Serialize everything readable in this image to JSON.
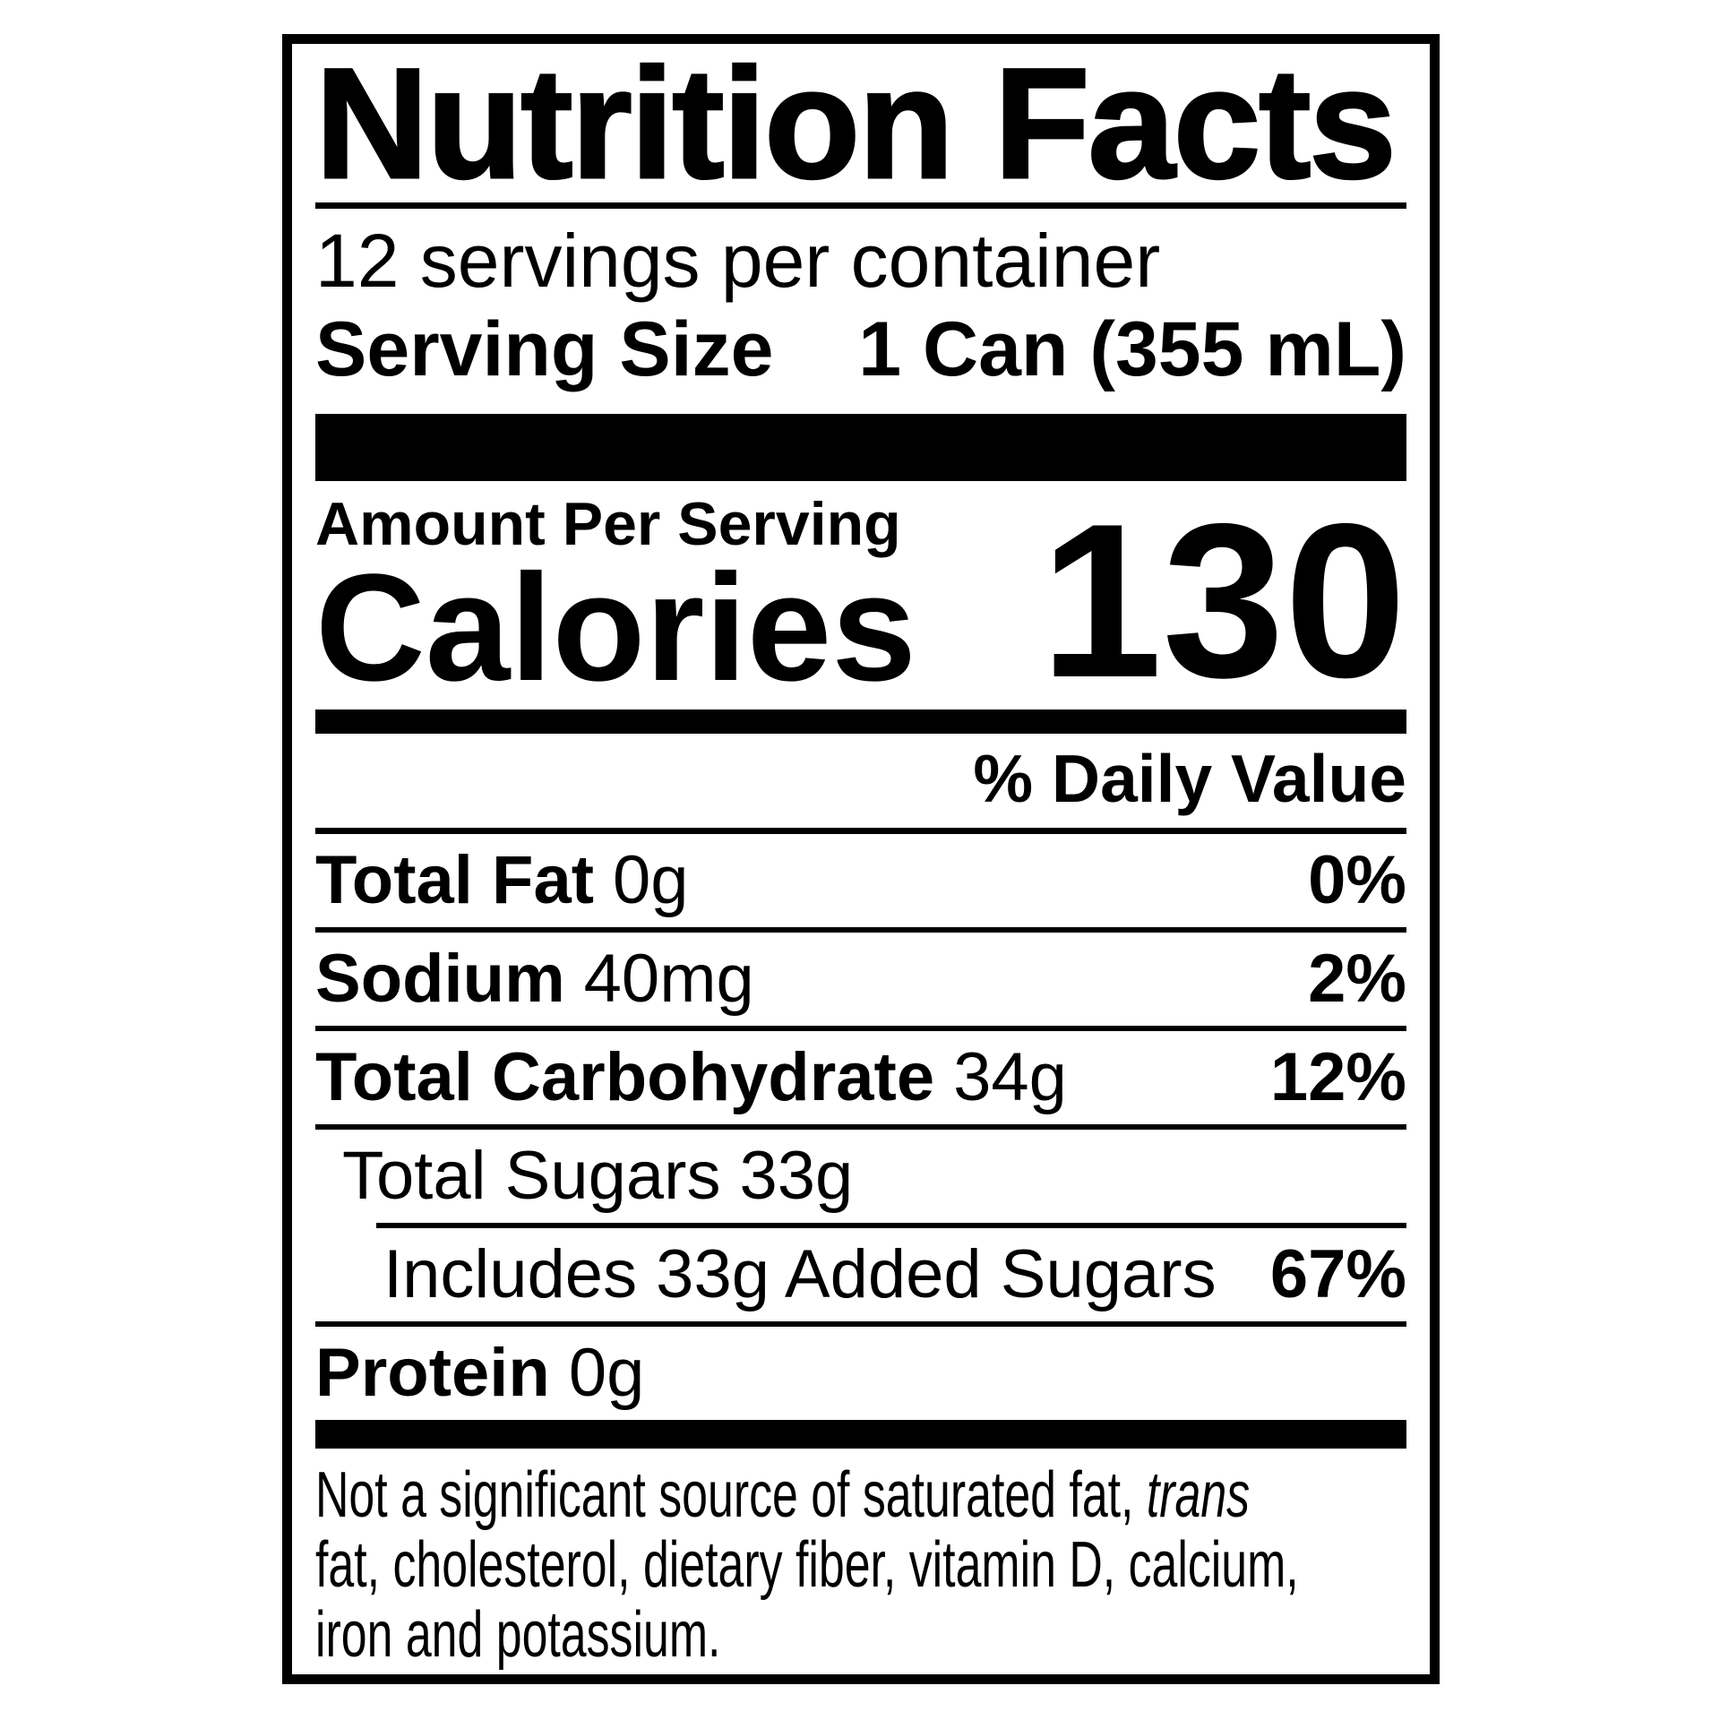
{
  "colors": {
    "text": "#000000",
    "background": "#ffffff"
  },
  "label": {
    "title": "Nutrition Facts",
    "servings_per_container": "12 servings per container",
    "serving_size_label": "Serving Size",
    "serving_size_value": "1 Can (355 mL)",
    "amount_per_serving": "Amount Per Serving",
    "calories_label": "Calories",
    "calories_value": "130",
    "daily_value_header": "% Daily Value",
    "rows": [
      {
        "name": "Total Fat",
        "amount": "0g",
        "dv": "0%"
      },
      {
        "name": "Sodium",
        "amount": "40mg",
        "dv": "2%"
      },
      {
        "name": "Total Carbohydrate",
        "amount": "34g",
        "dv": "12%"
      },
      {
        "name": "Total Sugars",
        "amount": "33g",
        "dv": ""
      },
      {
        "name": "Includes 33g Added Sugars",
        "amount": "",
        "dv": "67%"
      },
      {
        "name": "Protein",
        "amount": "0g",
        "dv": ""
      }
    ],
    "footnote": {
      "line1_prefix": "Not a significant source of saturated fat, ",
      "line1_italic": "trans",
      "line2": "fat, cholesterol, dietary fiber, vitamin D, calcium,",
      "line3": "iron and potassium."
    }
  }
}
